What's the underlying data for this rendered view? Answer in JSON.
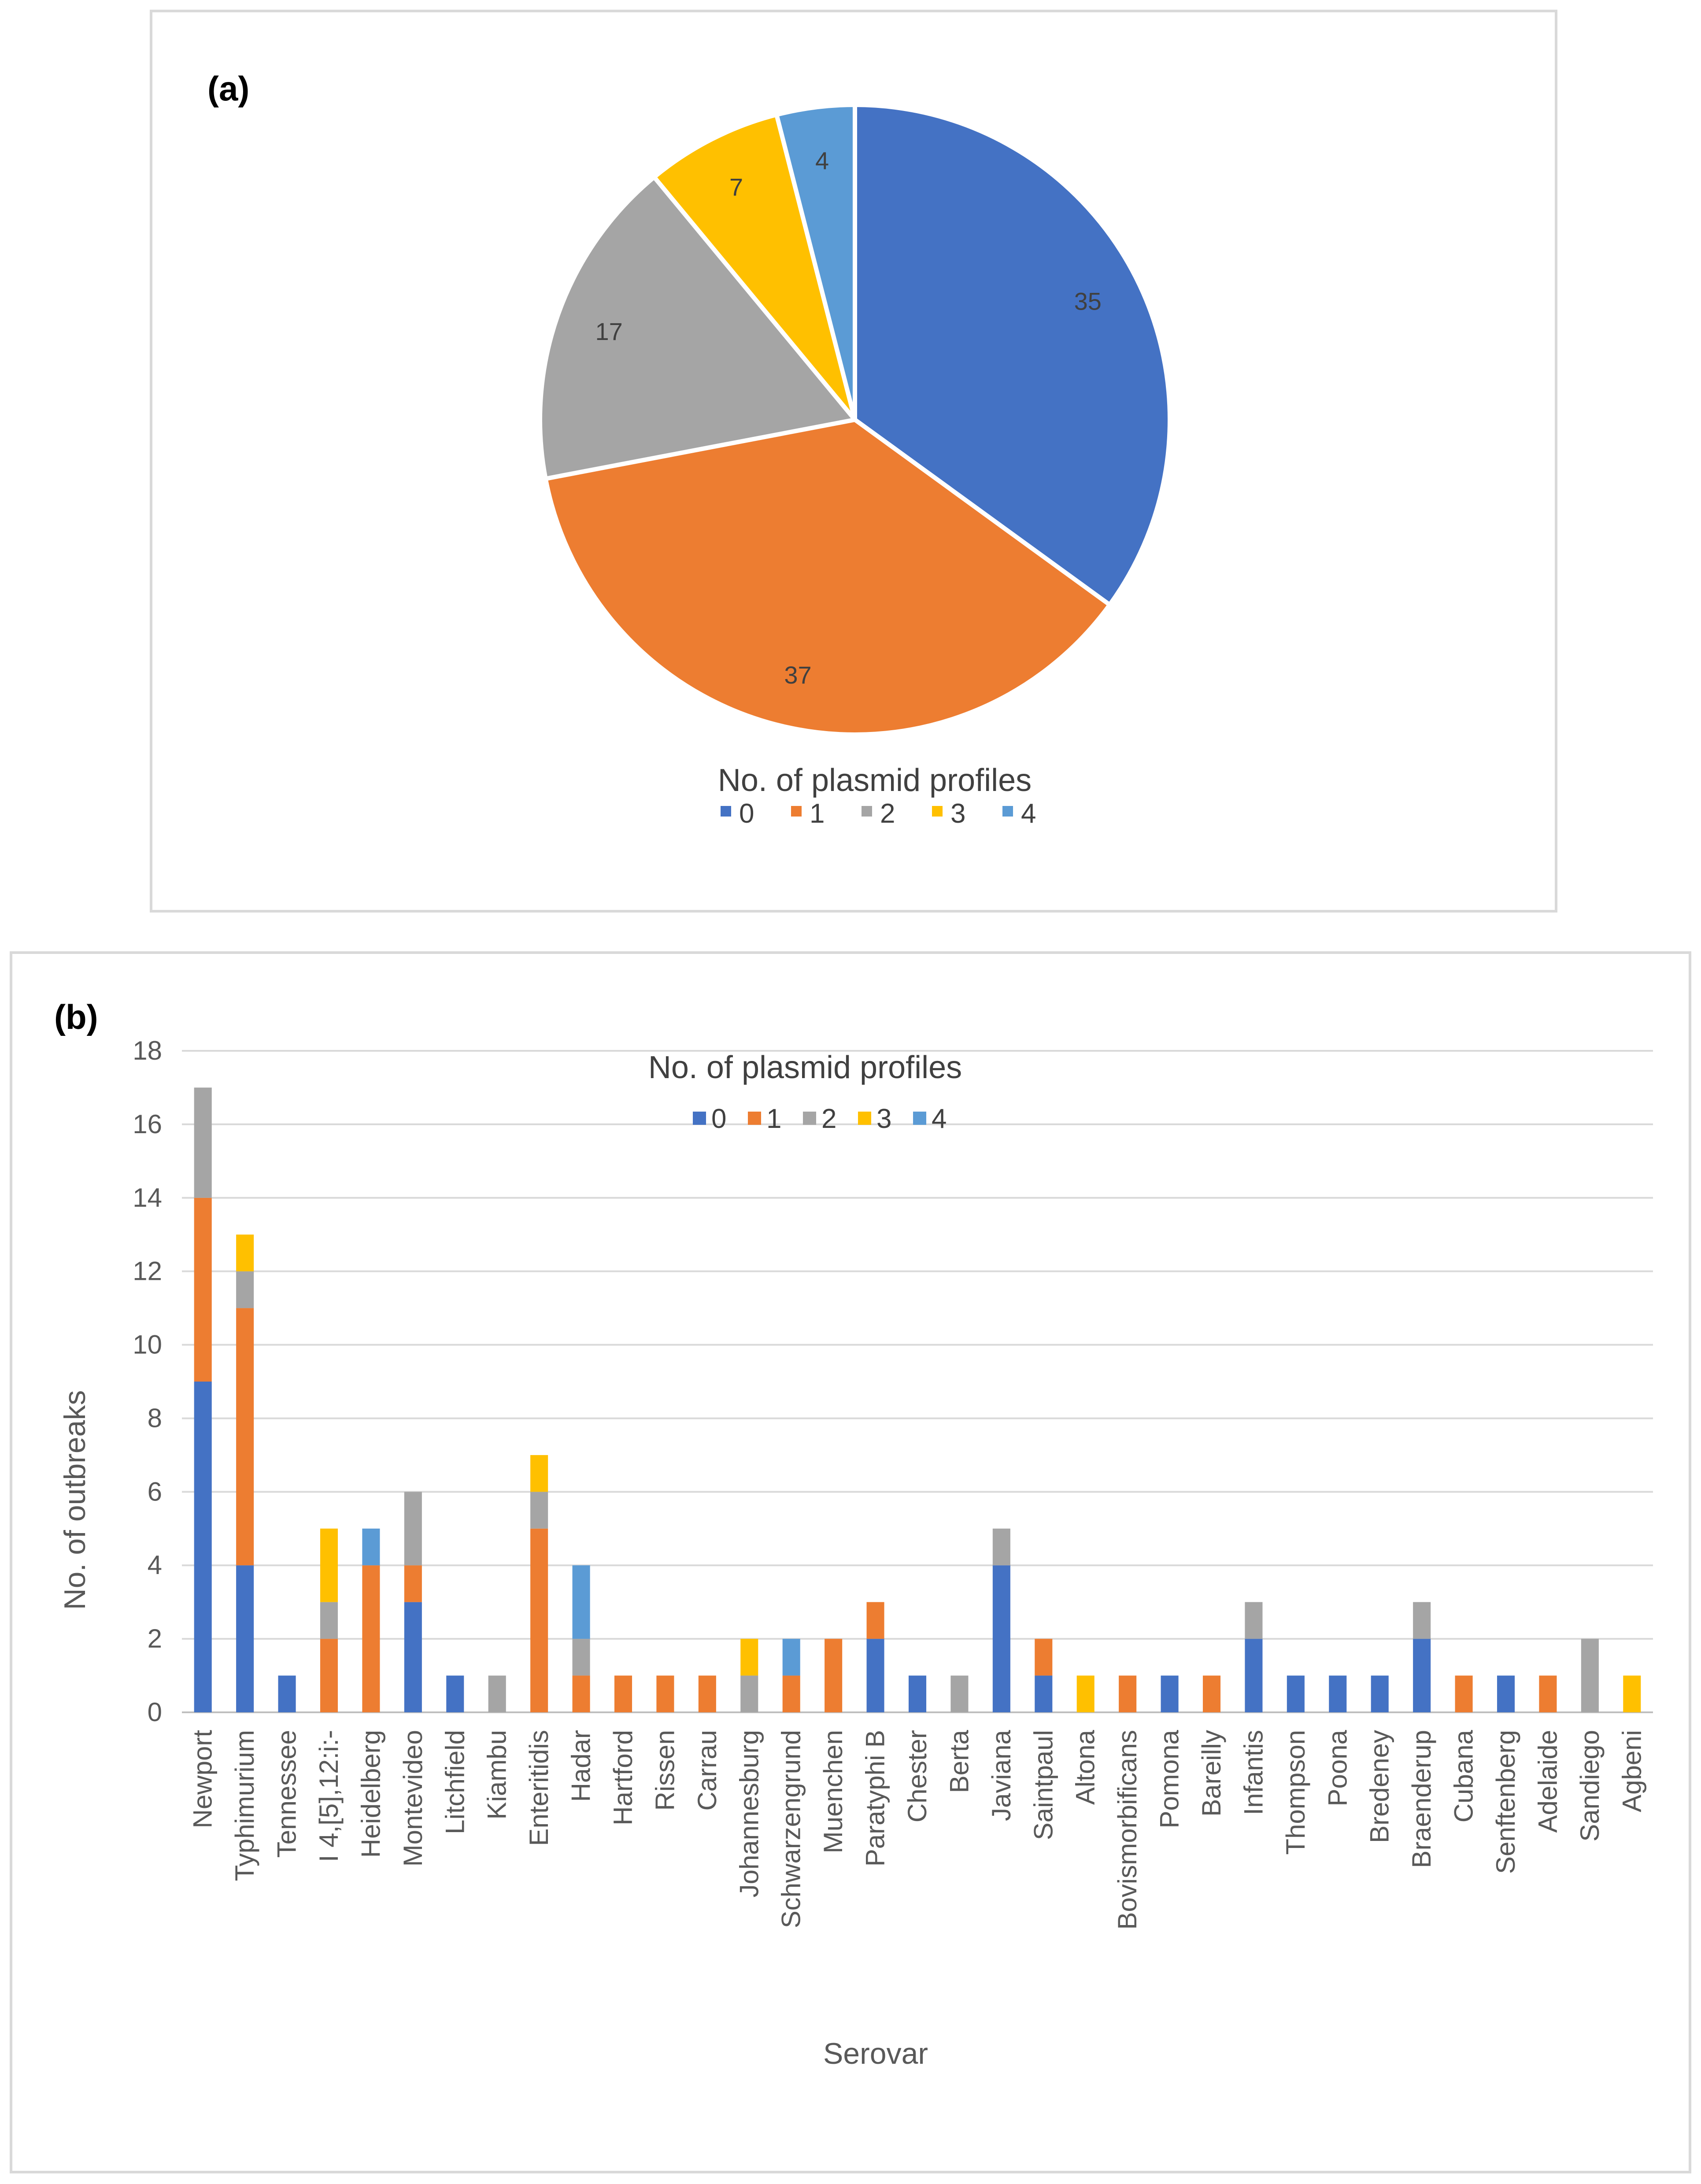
{
  "chart_data": [
    {
      "type": "pie",
      "panel_label": "(a)",
      "legend_title": "No. of plasmid profiles",
      "labels": [
        "0",
        "1",
        "2",
        "3",
        "4"
      ],
      "values": [
        35,
        37,
        17,
        7,
        4
      ],
      "colors": [
        "#4472c4",
        "#ed7d31",
        "#a5a5a5",
        "#ffc000",
        "#5b9bd5"
      ],
      "legend_position": "bottom"
    },
    {
      "type": "bar",
      "stacked": true,
      "panel_label": "(b)",
      "legend_title": "No. of plasmid profiles",
      "xlabel": "Serovar",
      "ylabel": "No. of outbreaks",
      "ylim": [
        0,
        18
      ],
      "yticks": [
        0,
        2,
        4,
        6,
        8,
        10,
        12,
        14,
        16,
        18
      ],
      "grid": true,
      "legend_position": "top-center",
      "categories": [
        "Newport",
        "Typhimurium",
        "Tennessee",
        "I 4,[5],12:i:-",
        "Heidelberg",
        "Montevideo",
        "Litchfield",
        "Kiambu",
        "Enteritidis",
        "Hadar",
        "Hartford",
        "Rissen",
        "Carrau",
        "Johannesburg",
        "Schwarzengrund",
        "Muenchen",
        "Paratyphi B",
        "Chester",
        "Berta",
        "Javiana",
        "Saintpaul",
        "Altona",
        "Bovismorbificans",
        "Pomona",
        "Bareilly",
        "Infantis",
        "Thompson",
        "Poona",
        "Bredeney",
        "Braenderup",
        "Cubana",
        "Senftenberg",
        "Adelaide",
        "Sandiego",
        "Agbeni"
      ],
      "series": [
        {
          "name": "0",
          "color": "#4472c4",
          "values": [
            9,
            4,
            1,
            0,
            0,
            3,
            1,
            0,
            0,
            0,
            0,
            0,
            0,
            0,
            0,
            0,
            2,
            1,
            0,
            4,
            1,
            0,
            0,
            1,
            0,
            2,
            1,
            1,
            1,
            2,
            0,
            1,
            0,
            0,
            0
          ]
        },
        {
          "name": "1",
          "color": "#ed7d31",
          "values": [
            5,
            7,
            0,
            2,
            4,
            1,
            0,
            0,
            5,
            1,
            1,
            1,
            1,
            0,
            1,
            2,
            1,
            0,
            0,
            0,
            1,
            0,
            1,
            0,
            1,
            0,
            0,
            0,
            0,
            0,
            1,
            0,
            1,
            0,
            0
          ]
        },
        {
          "name": "2",
          "color": "#a5a5a5",
          "values": [
            3,
            1,
            0,
            1,
            0,
            2,
            0,
            1,
            1,
            1,
            0,
            0,
            0,
            1,
            0,
            0,
            0,
            0,
            1,
            1,
            0,
            0,
            0,
            0,
            0,
            1,
            0,
            0,
            0,
            1,
            0,
            0,
            0,
            2,
            0
          ]
        },
        {
          "name": "3",
          "color": "#ffc000",
          "values": [
            0,
            1,
            0,
            2,
            0,
            0,
            0,
            0,
            1,
            0,
            0,
            0,
            0,
            1,
            0,
            0,
            0,
            0,
            0,
            0,
            0,
            1,
            0,
            0,
            0,
            0,
            0,
            0,
            0,
            0,
            0,
            0,
            0,
            0,
            1
          ]
        },
        {
          "name": "4",
          "color": "#5b9bd5",
          "values": [
            0,
            0,
            0,
            0,
            1,
            0,
            0,
            0,
            0,
            2,
            0,
            0,
            0,
            0,
            1,
            0,
            0,
            0,
            0,
            0,
            0,
            0,
            0,
            0,
            0,
            0,
            0,
            0,
            0,
            0,
            0,
            0,
            0,
            0,
            0
          ]
        }
      ]
    }
  ]
}
